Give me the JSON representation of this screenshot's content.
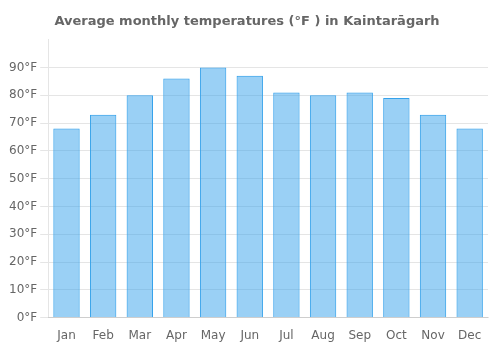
{
  "chart_data": {
    "type": "bar",
    "title": "Average monthly temperatures (°F ) in Kaintarāgarh",
    "categories": [
      "Jan",
      "Feb",
      "Mar",
      "Apr",
      "May",
      "Jun",
      "Jul",
      "Aug",
      "Sep",
      "Oct",
      "Nov",
      "Dec"
    ],
    "values": [
      68,
      73,
      80,
      86,
      90,
      87,
      81,
      80,
      81,
      79,
      73,
      68
    ],
    "ylim": [
      0,
      100
    ],
    "yticks": [
      {
        "value": 0,
        "label": "0°F"
      },
      {
        "value": 10,
        "label": "10°F"
      },
      {
        "value": 20,
        "label": "20°F"
      },
      {
        "value": 30,
        "label": "30°F"
      },
      {
        "value": 40,
        "label": "40°F"
      },
      {
        "value": 50,
        "label": "50°F"
      },
      {
        "value": 60,
        "label": "60°F"
      },
      {
        "value": 70,
        "label": "70°F"
      },
      {
        "value": 80,
        "label": "80°F"
      },
      {
        "value": 90,
        "label": "90°F"
      }
    ],
    "grid": true
  }
}
